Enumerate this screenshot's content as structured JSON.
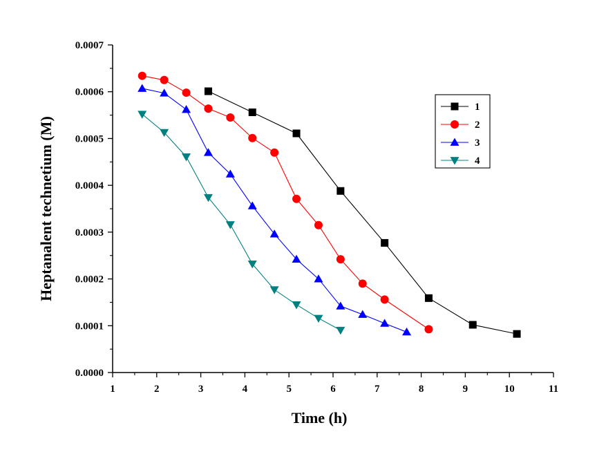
{
  "chart_data": {
    "type": "line",
    "title": "",
    "xlabel": "Time (h)",
    "ylabel": "Heptanalent technetium (M)",
    "xlim": [
      1,
      11
    ],
    "ylim": [
      0.0,
      0.0007
    ],
    "x_ticks": [
      "1",
      "2",
      "3",
      "4",
      "5",
      "6",
      "7",
      "8",
      "9",
      "10",
      "11"
    ],
    "y_ticks": [
      "0.0000",
      "0.0001",
      "0.0002",
      "0.0003",
      "0.0004",
      "0.0005",
      "0.0006",
      "0.0007"
    ],
    "grid": false,
    "legend_position": "top-right",
    "series": [
      {
        "name": "1",
        "color": "#000000",
        "marker": "square",
        "x": [
          3.17,
          4.17,
          5.17,
          6.17,
          7.17,
          8.17,
          9.17,
          10.17
        ],
        "y": [
          0.000601,
          0.000556,
          0.000511,
          0.000388,
          0.000277,
          0.000159,
          0.000102,
          8.25e-05
        ]
      },
      {
        "name": "2",
        "color": "#ff0000",
        "marker": "circle",
        "x": [
          1.67,
          2.17,
          2.67,
          3.17,
          3.67,
          4.17,
          4.67,
          5.17,
          5.67,
          6.17,
          6.67,
          7.17,
          8.17
        ],
        "y": [
          0.000634,
          0.000625,
          0.000598,
          0.000564,
          0.000545,
          0.000501,
          0.00047,
          0.000371,
          0.000315,
          0.000242,
          0.00019,
          0.000156,
          9.25e-05
        ]
      },
      {
        "name": "3",
        "color": "#0000ff",
        "marker": "triangle-up",
        "x": [
          1.67,
          2.17,
          2.67,
          3.17,
          3.67,
          4.17,
          4.67,
          5.17,
          5.67,
          6.17,
          6.67,
          7.17,
          7.67
        ],
        "y": [
          0.000607,
          0.000597,
          0.000562,
          0.00047,
          0.000424,
          0.000356,
          0.000296,
          0.000242,
          0.0002,
          0.000142,
          0.000124,
          0.000105,
          8.65e-05
        ]
      },
      {
        "name": "4",
        "color": "#008080",
        "marker": "triangle-down",
        "x": [
          1.67,
          2.17,
          2.67,
          3.17,
          3.67,
          4.17,
          4.67,
          5.17,
          5.67,
          6.17
        ],
        "y": [
          0.000552,
          0.000513,
          0.000461,
          0.000374,
          0.000316,
          0.000232,
          0.000177,
          0.000145,
          0.000116,
          9.05e-05
        ]
      }
    ]
  }
}
